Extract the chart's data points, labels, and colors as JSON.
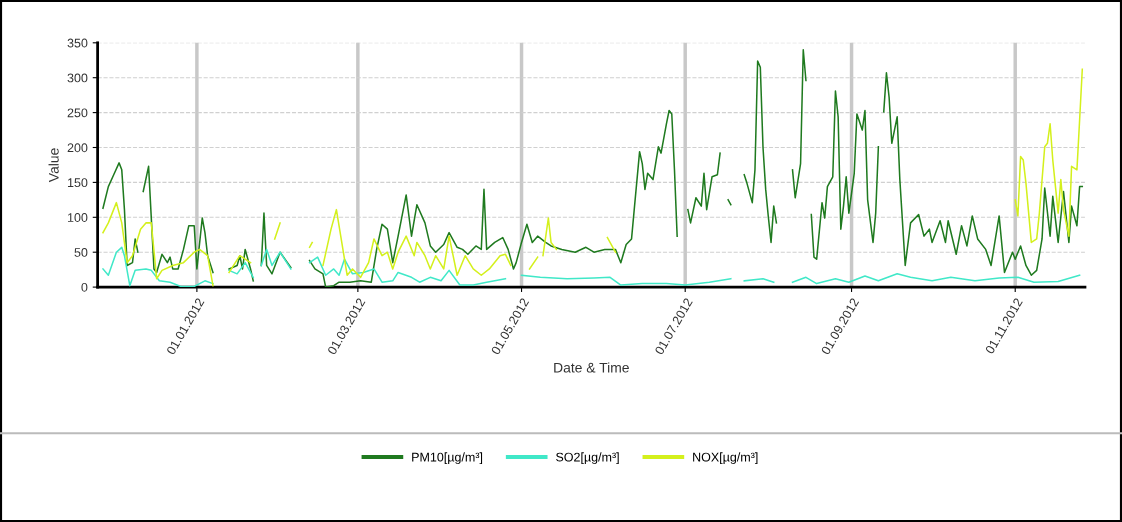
{
  "chart_data": {
    "type": "line",
    "xlabel": "Date & Time",
    "ylabel": "Value",
    "xlim": [
      "2011-11-25",
      "2012-11-27"
    ],
    "ylim": [
      0,
      350
    ],
    "yticks": [
      0,
      50,
      100,
      150,
      200,
      250,
      300,
      350
    ],
    "xticks": [
      {
        "value": "2012-01-01",
        "label": "01.01.2012"
      },
      {
        "value": "2012-03-01",
        "label": "01.03.2012"
      },
      {
        "value": "2012-05-01",
        "label": "01.05.2012"
      },
      {
        "value": "2012-07-01",
        "label": "01.07.2012"
      },
      {
        "value": "2012-09-01",
        "label": "01.09.2012"
      },
      {
        "value": "2012-11-01",
        "label": "01.11.2012"
      }
    ],
    "grid": true,
    "legend": "bottom",
    "marker": "none",
    "line_style": "solid",
    "series": [
      {
        "name": "PM10[µg/m³]",
        "color": "#1f7a1f",
        "x": [
          "2011-11-27",
          "2011-11-29",
          "2011-12-01",
          "2011-12-03",
          "2011-12-04",
          "2011-12-05",
          "2011-12-06",
          "2011-12-08",
          "2011-12-09",
          "2011-12-10",
          "2011-12-11",
          "2011-12-12",
          "2011-12-14",
          "2011-12-16",
          "2011-12-17",
          "2011-12-19",
          "2011-12-21",
          "2011-12-22",
          "2011-12-23",
          "2011-12-25",
          "2011-12-27",
          "2011-12-29",
          "2011-12-31",
          "2012-01-01",
          "2012-01-03",
          "2012-01-04",
          "2012-01-05",
          "2012-01-07",
          "2012-01-10",
          "2012-01-13",
          "2012-01-16",
          "2012-01-17",
          "2012-01-18",
          "2012-01-19",
          "2012-01-21",
          "2012-01-22",
          "2012-01-23",
          "2012-01-25",
          "2012-01-26",
          "2012-01-27",
          "2012-01-29",
          "2012-02-01",
          "2012-02-05",
          "2012-02-08",
          "2012-02-12",
          "2012-02-14",
          "2012-02-17",
          "2012-02-18",
          "2012-02-21",
          "2012-02-23",
          "2012-02-27",
          "2012-03-02",
          "2012-03-06",
          "2012-03-08",
          "2012-03-10",
          "2012-03-12",
          "2012-03-14",
          "2012-03-16",
          "2012-03-19",
          "2012-03-21",
          "2012-03-23",
          "2012-03-26",
          "2012-03-28",
          "2012-03-30",
          "2012-04-02",
          "2012-04-04",
          "2012-04-07",
          "2012-04-09",
          "2012-04-11",
          "2012-04-14",
          "2012-04-16",
          "2012-04-17",
          "2012-04-18",
          "2012-04-21",
          "2012-04-24",
          "2012-04-26",
          "2012-04-28",
          "2012-04-29",
          "2012-05-01",
          "2012-05-03",
          "2012-05-05",
          "2012-05-07",
          "2012-05-10",
          "2012-05-12",
          "2012-05-16",
          "2012-05-21",
          "2012-05-25",
          "2012-05-28",
          "2012-06-01",
          "2012-06-05",
          "2012-06-07",
          "2012-06-09",
          "2012-06-11",
          "2012-06-12",
          "2012-06-14",
          "2012-06-15",
          "2012-06-16",
          "2012-06-17",
          "2012-06-19",
          "2012-06-21",
          "2012-06-22",
          "2012-06-24",
          "2012-06-25",
          "2012-06-26",
          "2012-06-27",
          "2012-06-28",
          "2012-06-30",
          "2012-07-02",
          "2012-07-03",
          "2012-07-05",
          "2012-07-07",
          "2012-07-08",
          "2012-07-09",
          "2012-07-11",
          "2012-07-13",
          "2012-07-14",
          "2012-07-15",
          "2012-07-17",
          "2012-07-18",
          "2012-07-20",
          "2012-07-23",
          "2012-07-24",
          "2012-07-26",
          "2012-07-27",
          "2012-07-28",
          "2012-07-29",
          "2012-07-30",
          "2012-07-31",
          "2012-08-01",
          "2012-08-02",
          "2012-08-03",
          "2012-08-04",
          "2012-08-07",
          "2012-08-10",
          "2012-08-11",
          "2012-08-13",
          "2012-08-14",
          "2012-08-15",
          "2012-08-16",
          "2012-08-17",
          "2012-08-18",
          "2012-08-19",
          "2012-08-21",
          "2012-08-22",
          "2012-08-23",
          "2012-08-25",
          "2012-08-26",
          "2012-08-27",
          "2012-08-28",
          "2012-08-29",
          "2012-08-30",
          "2012-08-31",
          "2012-09-02",
          "2012-09-03",
          "2012-09-05",
          "2012-09-06",
          "2012-09-07",
          "2012-09-09",
          "2012-09-10",
          "2012-09-11",
          "2012-09-12",
          "2012-09-13",
          "2012-09-14",
          "2012-09-15",
          "2012-09-16",
          "2012-09-17",
          "2012-09-18",
          "2012-09-19",
          "2012-09-21",
          "2012-09-23",
          "2012-09-26",
          "2012-09-28",
          "2012-09-30",
          "2012-10-01",
          "2012-10-04",
          "2012-10-06",
          "2012-10-07",
          "2012-10-10",
          "2012-10-12",
          "2012-10-14",
          "2012-10-16",
          "2012-10-18",
          "2012-10-21",
          "2012-10-23",
          "2012-10-26",
          "2012-10-28",
          "2012-10-31",
          "2012-11-01",
          "2012-11-03",
          "2012-11-05",
          "2012-11-07",
          "2012-11-09",
          "2012-11-11",
          "2012-11-12",
          "2012-11-14",
          "2012-11-15",
          "2012-11-17",
          "2012-11-19",
          "2012-11-21",
          "2012-11-22",
          "2012-11-24",
          "2012-11-25",
          "2012-11-26"
        ],
        "values": [
          113,
          144,
          161,
          178,
          168,
          111,
          31,
          35,
          69,
          50,
          null,
          137,
          173,
          26,
          21,
          47,
          35,
          43,
          26,
          26,
          54,
          88,
          88,
          26,
          99,
          78,
          45,
          21,
          null,
          26,
          31,
          45,
          26,
          54,
          26,
          9,
          null,
          31,
          106,
          31,
          19,
          50,
          28,
          null,
          38,
          26,
          19,
          0,
          2,
          7,
          7,
          9,
          7,
          54,
          90,
          83,
          35,
          73,
          132,
          73,
          118,
          92,
          59,
          50,
          61,
          78,
          57,
          54,
          47,
          59,
          54,
          140,
          54,
          64,
          71,
          54,
          26,
          35,
          64,
          90,
          64,
          73,
          64,
          59,
          54,
          50,
          57,
          50,
          54,
          54,
          35,
          61,
          69,
          111,
          194,
          177,
          140,
          163,
          154,
          201,
          192,
          234,
          253,
          248,
          168,
          73,
          null,
          111,
          92,
          128,
          116,
          163,
          111,
          158,
          161,
          192,
          null,
          125,
          118,
          null,
          161,
          149,
          121,
          168,
          324,
          315,
          200,
          140,
          100,
          64,
          116,
          92,
          null,
          168,
          128,
          177,
          340,
          296,
          null,
          104,
          43,
          40,
          121,
          99,
          144,
          158,
          281,
          244,
          83,
          116,
          158,
          106,
          163,
          248,
          225,
          253,
          125,
          64,
          106,
          201,
          null,
          251,
          307,
          272,
          206,
          225,
          244,
          154,
          31,
          92,
          104,
          73,
          83,
          64,
          95,
          64,
          95,
          47,
          88,
          59,
          102,
          69,
          54,
          31,
          102,
          21,
          50,
          40,
          59,
          31,
          17,
          24,
          69,
          142,
          73,
          130,
          64,
          137,
          64,
          116,
          88,
          144,
          144
        ]
      },
      {
        "name": "SO2[µg/m³]",
        "color": "#40e8c8",
        "x": [
          "2011-11-27",
          "2011-11-29",
          "2011-12-02",
          "2011-12-04",
          "2011-12-05",
          "2011-12-07",
          "2011-12-09",
          "2011-12-13",
          "2011-12-15",
          "2011-12-18",
          "2011-12-22",
          "2011-12-26",
          "2011-12-31",
          "2012-01-04",
          "2012-01-07",
          "2012-01-10",
          "2012-01-13",
          "2012-01-16",
          "2012-01-19",
          "2012-01-22",
          "2012-01-23",
          "2012-01-25",
          "2012-01-27",
          "2012-01-29",
          "2012-02-01",
          "2012-02-05",
          "2012-02-08",
          "2012-02-12",
          "2012-02-15",
          "2012-02-18",
          "2012-02-21",
          "2012-02-23",
          "2012-02-25",
          "2012-02-28",
          "2012-03-03",
          "2012-03-07",
          "2012-03-10",
          "2012-03-14",
          "2012-03-16",
          "2012-03-21",
          "2012-03-24",
          "2012-03-28",
          "2012-04-01",
          "2012-04-04",
          "2012-04-08",
          "2012-04-13",
          "2012-04-18",
          "2012-04-21",
          "2012-04-25",
          "2012-04-28",
          "2012-05-01",
          "2012-05-08",
          "2012-05-18",
          "2012-05-28",
          "2012-06-03",
          "2012-06-07",
          "2012-06-15",
          "2012-06-24",
          "2012-07-01",
          "2012-07-10",
          "2012-07-18",
          "2012-07-20",
          "2012-07-23",
          "2012-07-30",
          "2012-08-03",
          "2012-08-07",
          "2012-08-10",
          "2012-08-15",
          "2012-08-19",
          "2012-08-26",
          "2012-08-31",
          "2012-09-06",
          "2012-09-11",
          "2012-09-18",
          "2012-09-23",
          "2012-10-01",
          "2012-10-08",
          "2012-10-17",
          "2012-10-26",
          "2012-11-02",
          "2012-11-08",
          "2012-11-17",
          "2012-11-25"
        ],
        "values": [
          26,
          17,
          50,
          57,
          45,
          2,
          24,
          26,
          24,
          9,
          7,
          1,
          1,
          9,
          5,
          null,
          24,
          19,
          35,
          14,
          null,
          31,
          54,
          31,
          50,
          26,
          null,
          35,
          43,
          17,
          26,
          17,
          40,
          19,
          21,
          26,
          7,
          9,
          21,
          14,
          7,
          14,
          9,
          24,
          3,
          3,
          7,
          9,
          12,
          null,
          17,
          14,
          12,
          13,
          14,
          3,
          5,
          5,
          3,
          7,
          12,
          null,
          9,
          12,
          7,
          null,
          7,
          14,
          5,
          12,
          7,
          16,
          9,
          19,
          14,
          9,
          14,
          9,
          13,
          14,
          7,
          8,
          17
        ]
      },
      {
        "name": "NOX[µg/m³]",
        "color": "#d4f01c",
        "x": [
          "2011-11-27",
          "2011-11-29",
          "2011-12-02",
          "2011-12-04",
          "2011-12-06",
          "2011-12-08",
          "2011-12-11",
          "2011-12-13",
          "2011-12-15",
          "2011-12-17",
          "2011-12-19",
          "2011-12-23",
          "2011-12-27",
          "2011-12-31",
          "2012-01-02",
          "2012-01-05",
          "2012-01-07",
          "2012-01-10",
          "2012-01-13",
          "2012-01-17",
          "2012-01-21",
          "2012-01-25",
          "2012-01-30",
          "2012-02-01",
          "2012-02-07",
          "2012-02-12",
          "2012-02-13",
          "2012-02-15",
          "2012-02-17",
          "2012-02-20",
          "2012-02-22",
          "2012-02-24",
          "2012-02-26",
          "2012-02-28",
          "2012-03-02",
          "2012-03-05",
          "2012-03-07",
          "2012-03-10",
          "2012-03-12",
          "2012-03-14",
          "2012-03-16",
          "2012-03-19",
          "2012-03-22",
          "2012-03-23",
          "2012-03-26",
          "2012-03-28",
          "2012-03-30",
          "2012-04-02",
          "2012-04-04",
          "2012-04-07",
          "2012-04-10",
          "2012-04-13",
          "2012-04-16",
          "2012-04-19",
          "2012-04-23",
          "2012-04-25",
          "2012-04-27",
          "2012-05-01",
          "2012-05-04",
          "2012-05-07",
          "2012-05-08",
          "2012-05-09",
          "2012-05-11",
          "2012-05-12",
          "2012-05-14",
          "2012-05-25",
          "2012-06-02",
          "2012-06-05",
          "2012-08-01",
          "2012-11-01",
          "2012-11-02",
          "2012-11-03",
          "2012-11-04",
          "2012-11-05",
          "2012-11-07",
          "2012-11-09",
          "2012-11-10",
          "2012-11-12",
          "2012-11-13",
          "2012-11-14",
          "2012-11-15",
          "2012-11-17",
          "2012-11-18",
          "2012-11-19",
          "2012-11-21",
          "2012-11-22",
          "2012-11-24",
          "2012-11-25",
          "2012-11-26"
        ],
        "values": [
          78,
          92,
          121,
          92,
          35,
          45,
          83,
          92,
          92,
          12,
          24,
          31,
          35,
          50,
          54,
          45,
          2,
          null,
          21,
          45,
          35,
          null,
          69,
          92,
          null,
          57,
          64,
          null,
          31,
          83,
          111,
          64,
          17,
          26,
          14,
          35,
          69,
          45,
          50,
          26,
          50,
          73,
          45,
          64,
          45,
          26,
          45,
          26,
          73,
          17,
          45,
          26,
          17,
          26,
          45,
          47,
          31,
          null,
          26,
          43,
          null,
          45,
          99,
          64,
          54,
          null,
          71,
          50,
          null,
          125,
          102,
          187,
          182,
          149,
          64,
          69,
          106,
          201,
          206,
          234,
          182,
          106,
          154,
          111,
          73,
          173,
          168,
          239,
          312
        ]
      }
    ]
  }
}
